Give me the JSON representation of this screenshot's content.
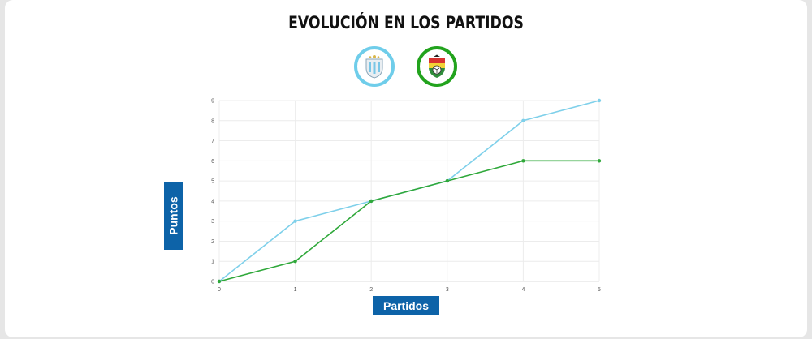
{
  "title": "EVOLUCIÓN EN LOS PARTIDOS",
  "teams": [
    {
      "icon": "argentina-crest-icon",
      "color": "#6fcdea"
    },
    {
      "icon": "bolivia-crest-icon",
      "color": "#22a31d"
    }
  ],
  "chart_data": {
    "type": "line",
    "xlabel": "Partidos",
    "ylabel": "Puntos",
    "x": [
      0,
      1,
      2,
      3,
      4,
      5
    ],
    "xlim": [
      0,
      5
    ],
    "ylim": [
      0,
      9
    ],
    "yticks": [
      0,
      1,
      2,
      3,
      4,
      5,
      6,
      7,
      8,
      9
    ],
    "grid": true,
    "series": [
      {
        "color": "#7fd0ea",
        "values": [
          0,
          3,
          4,
          5,
          8,
          9
        ]
      },
      {
        "color": "#2fa83a",
        "values": [
          0,
          1,
          4,
          5,
          6,
          6
        ]
      }
    ]
  }
}
